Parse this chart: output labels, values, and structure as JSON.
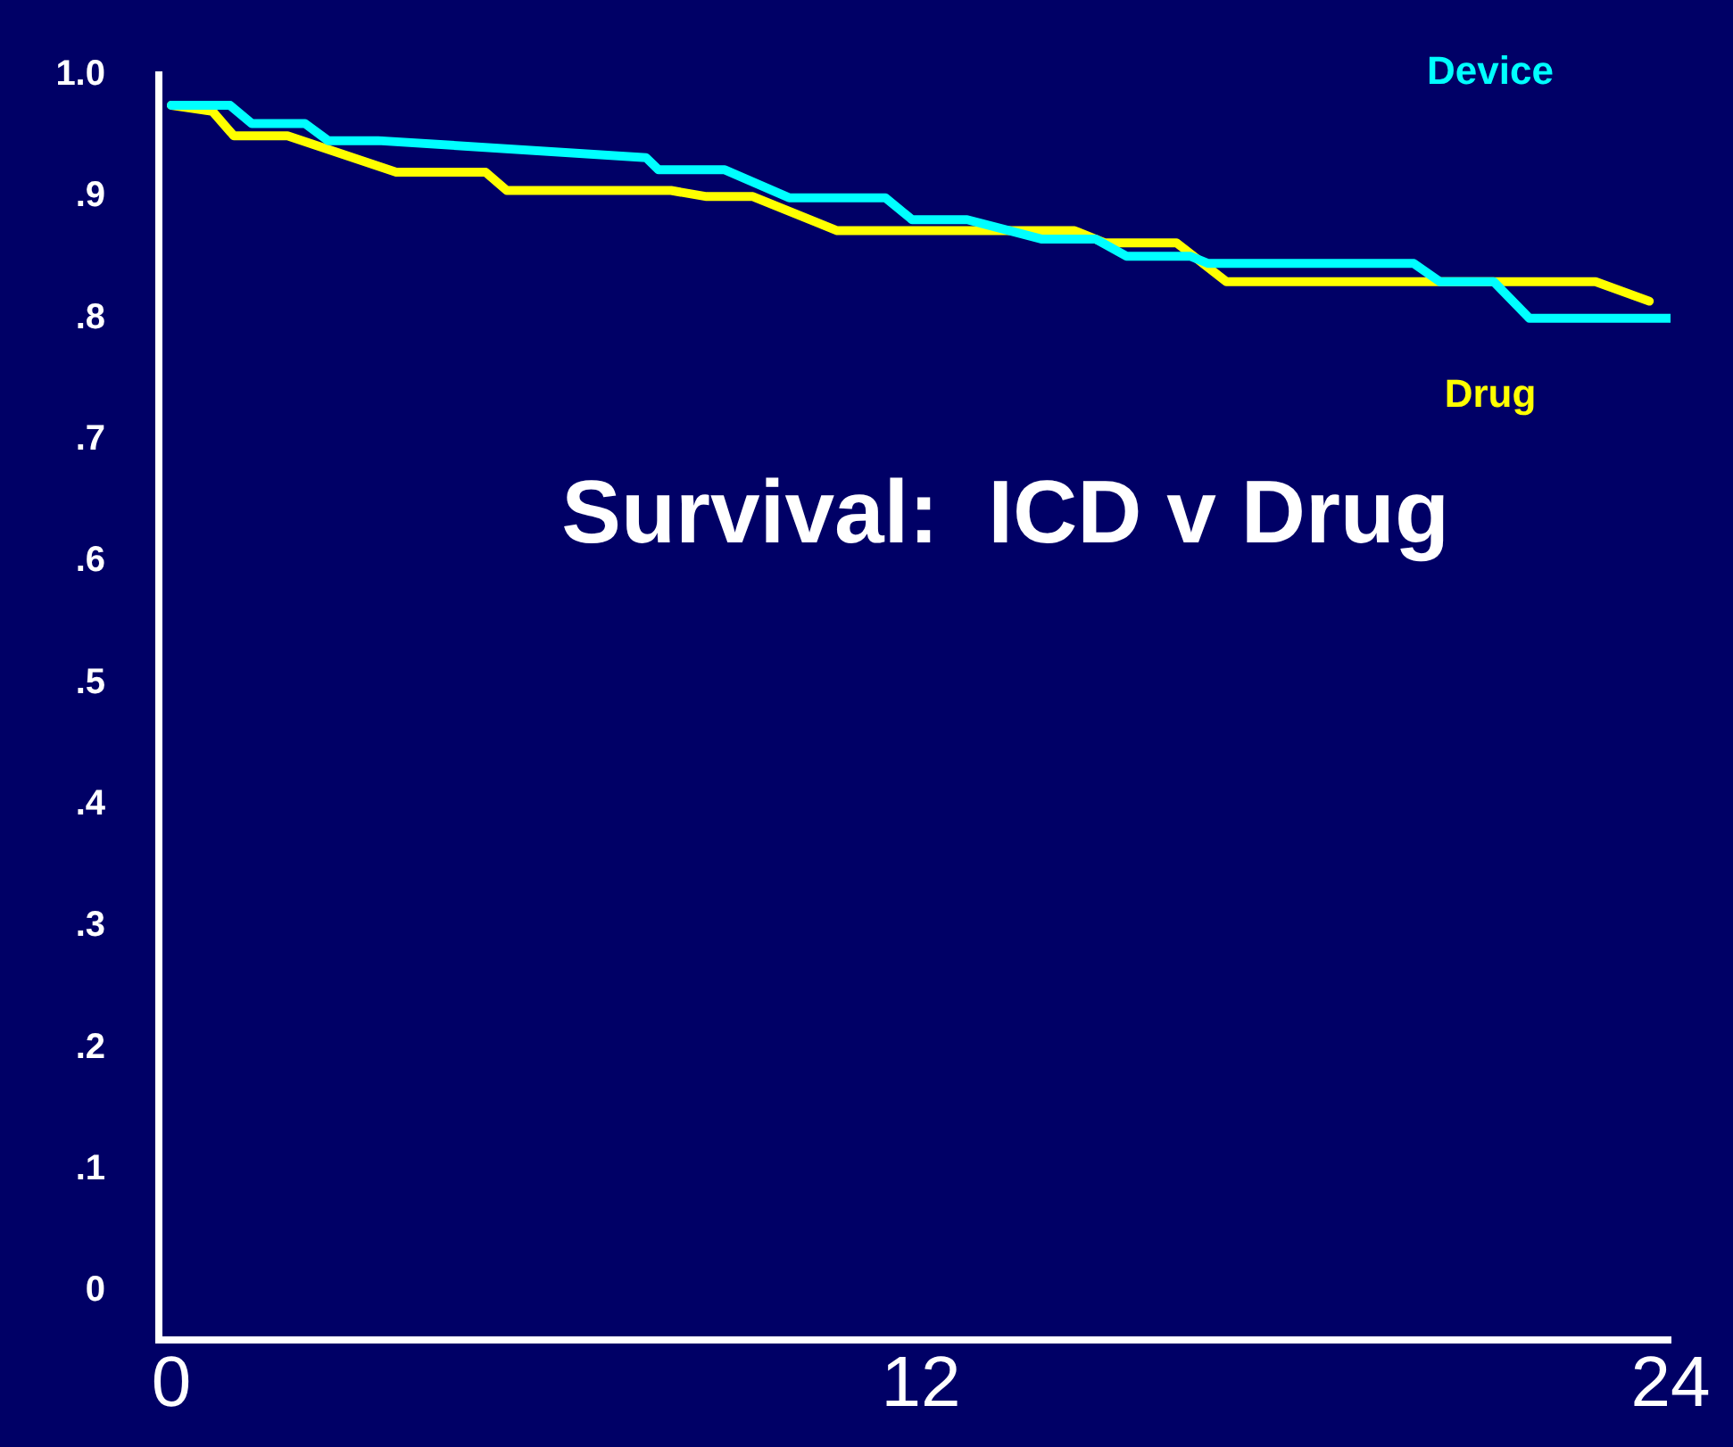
{
  "chart_data": {
    "type": "line",
    "title": "Survival:  ICD v Drug",
    "xlim": [
      -0.2,
      24
    ],
    "xticks": [
      0,
      12,
      24
    ],
    "ylim": [
      -0.04,
      1.0
    ],
    "yticks": [
      {
        "value": 0,
        "label": "0"
      },
      {
        "value": 0.1,
        "label": ".1"
      },
      {
        "value": 0.2,
        "label": ".2"
      },
      {
        "value": 0.3,
        "label": ".3"
      },
      {
        "value": 0.4,
        "label": ".4"
      },
      {
        "value": 0.5,
        "label": ".5"
      },
      {
        "value": 0.6,
        "label": ".6"
      },
      {
        "value": 0.7,
        "label": ".7"
      },
      {
        "value": 0.8,
        "label": ".8"
      },
      {
        "value": 0.9,
        "label": ".9"
      },
      {
        "value": 1.0,
        "label": "1.0"
      }
    ],
    "grid": false,
    "legend": false,
    "marker": "none",
    "line_style": "solid",
    "series": [
      {
        "name": "Device",
        "color": "#00ffff",
        "x": [
          0,
          0.94,
          1.29,
          2.14,
          2.51,
          3.31,
          7.6,
          7.8,
          8.86,
          9.89,
          11.43,
          11.86,
          12.74,
          13.94,
          14.8,
          15.29,
          16.31,
          16.6,
          19.89,
          20.31,
          21.17,
          21.74,
          24
        ],
        "values": [
          0.975,
          0.975,
          0.96,
          0.96,
          0.946,
          0.946,
          0.932,
          0.922,
          0.922,
          0.899,
          0.899,
          0.881,
          0.881,
          0.865,
          0.865,
          0.851,
          0.851,
          0.845,
          0.845,
          0.83,
          0.83,
          0.8,
          0.8
        ]
      },
      {
        "name": "Drug",
        "color": "#ffff00",
        "x": [
          0,
          0.66,
          1.0,
          1.86,
          3.6,
          5.03,
          5.37,
          8.0,
          8.57,
          9.31,
          10.66,
          14.46,
          14.94,
          16.09,
          16.89,
          22.8,
          23.66
        ],
        "values": [
          0.975,
          0.97,
          0.95,
          0.95,
          0.92,
          0.92,
          0.905,
          0.905,
          0.9,
          0.9,
          0.872,
          0.872,
          0.862,
          0.862,
          0.83,
          0.83,
          0.814
        ]
      }
    ]
  }
}
